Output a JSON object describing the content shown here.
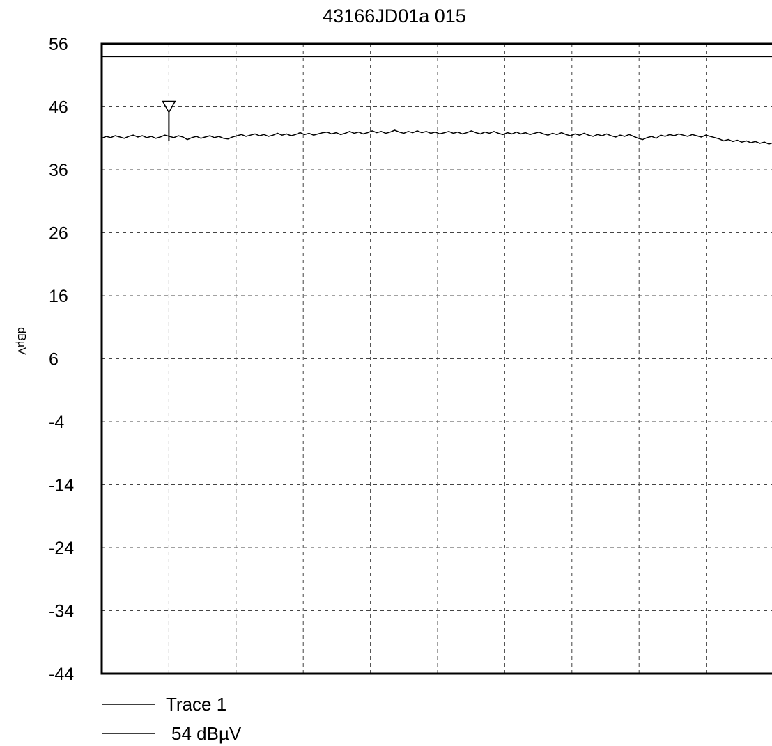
{
  "chart_data": {
    "type": "line",
    "title": "43166JD01a 015",
    "xlabel": "",
    "ylabel": "dBµV",
    "ylim": [
      -44,
      56
    ],
    "yticks": [
      "56",
      "46",
      "36",
      "26",
      "16",
      "6",
      "-4",
      "-14",
      "-24",
      "-34",
      "-44"
    ],
    "x_divisions": 10,
    "grid": true,
    "legend_position": "bottom-left",
    "limit_line": {
      "name": "54 dBµV",
      "value": 54
    },
    "marker": {
      "x": 0.1,
      "y": 46,
      "shape": "triangle-down"
    },
    "series": [
      {
        "name": "Trace 1",
        "values": [
          41.0,
          41.3,
          41.1,
          41.4,
          41.2,
          41.0,
          41.3,
          41.5,
          41.2,
          41.4,
          41.1,
          41.3,
          41.0,
          41.2,
          41.5,
          41.3,
          41.1,
          41.4,
          41.2,
          40.8,
          41.1,
          41.3,
          41.0,
          41.2,
          41.4,
          41.1,
          41.3,
          41.0,
          40.9,
          41.2,
          41.4,
          41.6,
          41.3,
          41.5,
          41.7,
          41.4,
          41.6,
          41.3,
          41.5,
          41.8,
          41.5,
          41.7,
          41.4,
          41.6,
          41.9,
          41.6,
          41.8,
          41.5,
          41.7,
          41.9,
          42.0,
          41.7,
          41.9,
          41.6,
          41.8,
          42.1,
          41.8,
          42.0,
          41.7,
          41.9,
          42.2,
          41.9,
          42.1,
          41.8,
          42.0,
          42.3,
          42.0,
          41.8,
          42.1,
          41.9,
          42.2,
          41.9,
          42.1,
          41.8,
          42.0,
          41.7,
          41.9,
          42.1,
          41.8,
          42.0,
          41.7,
          41.9,
          42.2,
          41.9,
          41.7,
          42.0,
          41.8,
          42.1,
          41.8,
          41.6,
          41.9,
          41.7,
          42.0,
          41.7,
          41.9,
          41.6,
          41.8,
          42.0,
          41.7,
          41.5,
          41.8,
          41.6,
          41.9,
          41.6,
          41.4,
          41.7,
          41.5,
          41.8,
          41.5,
          41.3,
          41.6,
          41.4,
          41.7,
          41.4,
          41.2,
          41.5,
          41.3,
          41.6,
          41.3,
          41.0,
          40.8,
          41.1,
          41.3,
          41.0,
          41.5,
          41.3,
          41.6,
          41.4,
          41.7,
          41.5,
          41.3,
          41.6,
          41.4,
          41.2,
          41.5,
          41.3,
          41.1,
          40.9,
          40.6,
          40.8,
          40.5,
          40.7,
          40.4,
          40.6,
          40.3,
          40.5,
          40.2,
          40.4,
          40.1,
          40.3
        ]
      }
    ]
  }
}
